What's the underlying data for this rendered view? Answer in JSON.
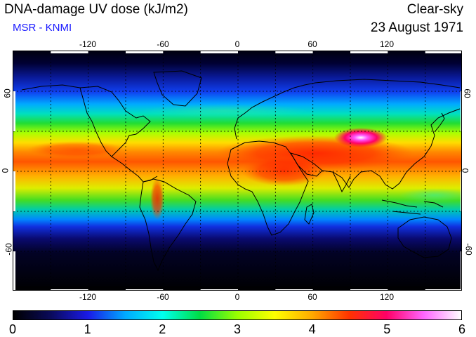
{
  "header": {
    "title": "DNA-damage UV dose (kJ/m2)",
    "subtitle": "MSR - KNMI",
    "mode": "Clear-sky",
    "date": "23 August 1971"
  },
  "colors": {
    "subtitle": "#1a1aff",
    "colorbar_stops": [
      "#000000",
      "#0a0a5a",
      "#1a1ae6",
      "#00aaff",
      "#00ffee",
      "#00dd44",
      "#99ff00",
      "#ffff00",
      "#ffaa00",
      "#ff3300",
      "#ff0066",
      "#ff66ff",
      "#ffffff"
    ]
  },
  "map": {
    "lon_labels_top": [
      "-120",
      "-60",
      "0",
      "60",
      "120"
    ],
    "lon_labels_bottom": [
      "-120",
      "-60",
      "0",
      "60",
      "120"
    ],
    "lat_labels_left": [
      "60",
      "0",
      "-60"
    ],
    "lat_labels_right": [
      "60",
      "0",
      "-60"
    ],
    "lon_ticks": [
      -120,
      -60,
      0,
      60,
      120
    ],
    "lat_ticks": [
      60,
      0,
      -60
    ],
    "lon_range": [
      -180,
      180
    ],
    "lat_range": [
      -90,
      90
    ],
    "gridlines": "dotted"
  },
  "colorbar": {
    "labels": [
      "0",
      "1",
      "2",
      "3",
      "4",
      "5",
      "6"
    ],
    "range": [
      0,
      6
    ],
    "unit": "kJ/m2"
  }
}
